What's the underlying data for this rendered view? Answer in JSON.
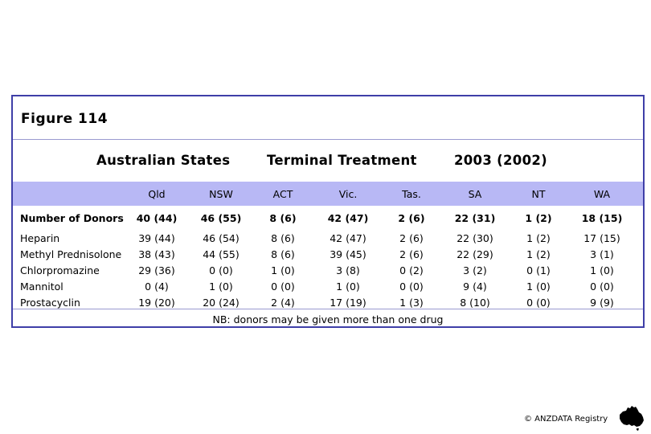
{
  "figure": {
    "title": "Figure 114"
  },
  "header": {
    "region": "Australian States",
    "subject": "Terminal Treatment",
    "years": "2003 (2002)"
  },
  "columns": [
    "Qld",
    "NSW",
    "ACT",
    "Vic.",
    "Tas.",
    "SA",
    "NT",
    "WA"
  ],
  "donors": {
    "label": "Number of Donors",
    "values": [
      "40 (44)",
      "46 (55)",
      "8 (6)",
      "42 (47)",
      "2 (6)",
      "22 (31)",
      "1 (2)",
      "18 (15)"
    ]
  },
  "rows": [
    {
      "label": "Heparin",
      "values": [
        "39 (44)",
        "46 (54)",
        "8 (6)",
        "42 (47)",
        "2 (6)",
        "22 (30)",
        "1 (2)",
        "17 (15)"
      ]
    },
    {
      "label": "Methyl Prednisolone",
      "values": [
        "38 (43)",
        "44 (55)",
        "8 (6)",
        "39 (45)",
        "2 (6)",
        "22 (29)",
        "1 (2)",
        "3 (1)"
      ]
    },
    {
      "label": "Chlorpromazine",
      "values": [
        "29 (36)",
        "0 (0)",
        "1 (0)",
        "3 (8)",
        "0 (2)",
        "3 (2)",
        "0 (1)",
        "1 (0)"
      ]
    },
    {
      "label": "Mannitol",
      "values": [
        "0 (4)",
        "1 (0)",
        "0 (0)",
        "1 (0)",
        "0 (0)",
        "9 (4)",
        "1 (0)",
        "0 (0)"
      ]
    },
    {
      "label": "Prostacyclin",
      "values": [
        "19 (20)",
        "20 (24)",
        "2 (4)",
        "17 (19)",
        "1 (3)",
        "8 (10)",
        "0 (0)",
        "9 (9)"
      ]
    }
  ],
  "footnote": "NB: donors may be given more than one drug",
  "copyright": "© ANZDATA Registry",
  "colors": {
    "frame": "#3f3fa8",
    "band": "#b8b8f5"
  }
}
